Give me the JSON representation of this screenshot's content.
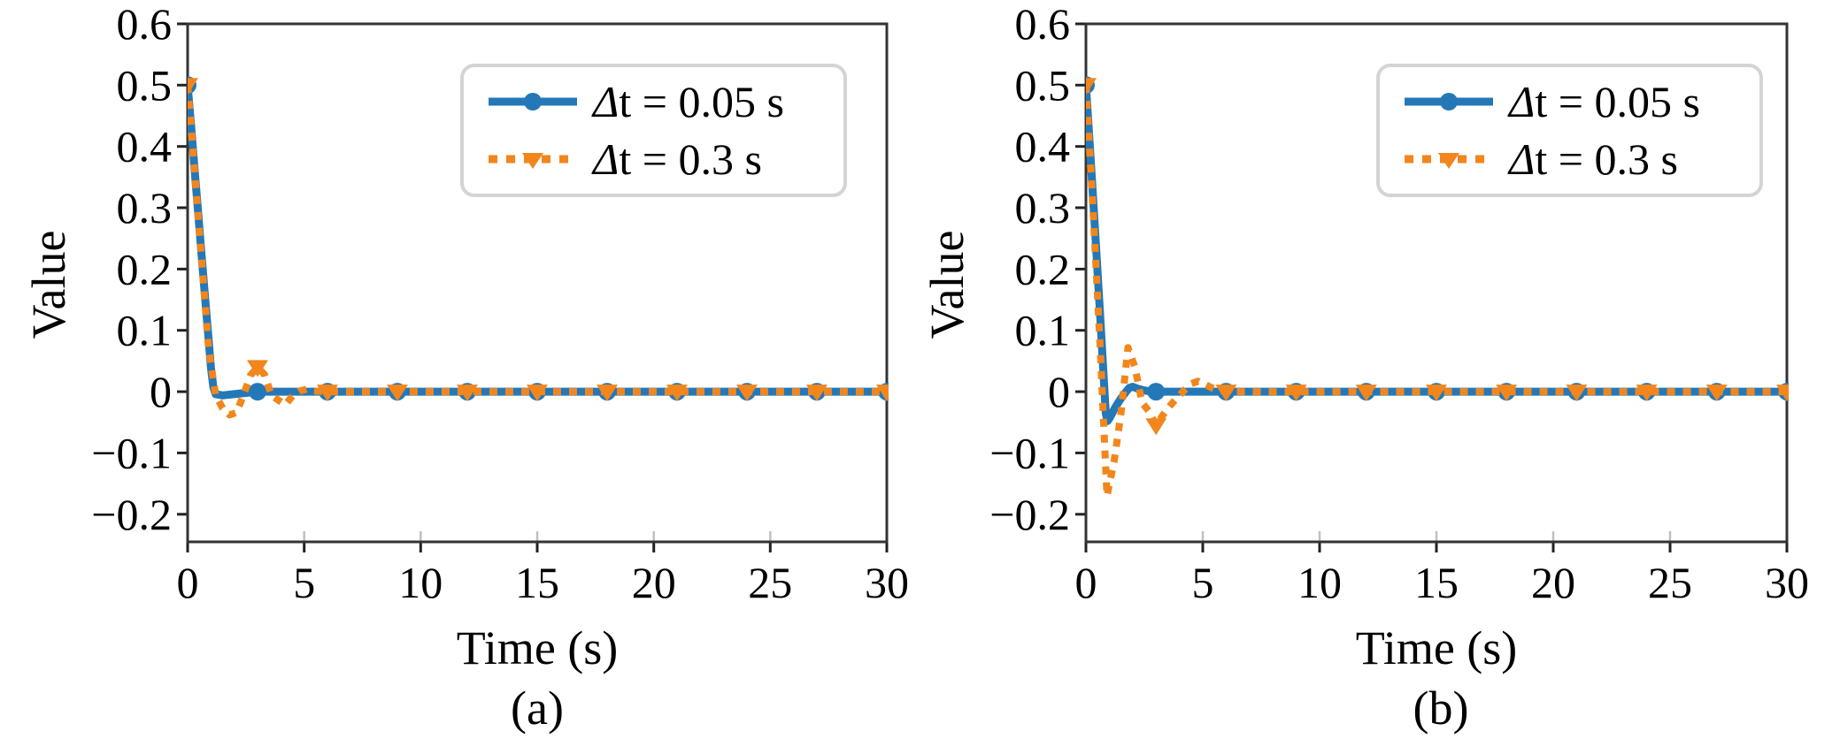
{
  "figure": {
    "background": "#ffffff"
  },
  "colors": {
    "series_dt005": "#2478b7",
    "series_dt03": "#f2861d",
    "spine": "#333333",
    "tick": "#222222",
    "tick_inner": "#c0c0c0",
    "text": "#000000",
    "legend_border": "#d4d4d4",
    "legend_bg": "#ffffff"
  },
  "chart_data": [
    {
      "type": "line",
      "caption": "(a)",
      "xlabel": "Time (s)",
      "ylabel": "Value",
      "xlim": [
        0,
        30
      ],
      "ylim": [
        -0.245,
        0.6
      ],
      "grid": false,
      "legend_position": "upper right",
      "xticks": [
        {
          "v": 0,
          "label": "0"
        },
        {
          "v": 5,
          "label": "5"
        },
        {
          "v": 10,
          "label": "10"
        },
        {
          "v": 15,
          "label": "15"
        },
        {
          "v": 20,
          "label": "20"
        },
        {
          "v": 25,
          "label": "25"
        },
        {
          "v": 30,
          "label": "30"
        }
      ],
      "yticks": [
        {
          "v": 0.6,
          "label": "0.6"
        },
        {
          "v": 0.5,
          "label": "0.5"
        },
        {
          "v": 0.4,
          "label": "0.4"
        },
        {
          "v": 0.3,
          "label": "0.3"
        },
        {
          "v": 0.2,
          "label": "0.2"
        },
        {
          "v": 0.1,
          "label": "0.1"
        },
        {
          "v": 0,
          "label": "0"
        },
        {
          "v": -0.1,
          "label": "−0.1"
        },
        {
          "v": -0.2,
          "label": "−0.2"
        }
      ],
      "legend": {
        "entries": [
          {
            "delta": "Δ",
            "rest": "t = 0.05 s"
          },
          {
            "delta": "Δ",
            "rest": "t = 0.3 s"
          }
        ]
      },
      "series": [
        {
          "name": "Δt = 0.05 s",
          "style": "solid",
          "marker": "circle",
          "line": [
            [
              0,
              0.5
            ],
            [
              0.15,
              0.432
            ],
            [
              0.3,
              0.362
            ],
            [
              0.45,
              0.292
            ],
            [
              0.6,
              0.222
            ],
            [
              0.75,
              0.152
            ],
            [
              0.9,
              0.085
            ],
            [
              1,
              0.04
            ],
            [
              1.1,
              0.008
            ],
            [
              1.2,
              -0.004
            ],
            [
              1.5,
              -0.006
            ],
            [
              2,
              -0.004
            ],
            [
              2.5,
              -0.002
            ],
            [
              3,
              0
            ],
            [
              30,
              0
            ]
          ],
          "marker_points": [
            [
              0,
              0.5
            ],
            [
              3,
              0
            ],
            [
              6,
              0
            ],
            [
              9,
              0
            ],
            [
              12,
              0
            ],
            [
              15,
              0
            ],
            [
              18,
              0
            ],
            [
              21,
              0
            ],
            [
              24,
              0
            ],
            [
              27,
              0
            ],
            [
              30,
              0
            ]
          ]
        },
        {
          "name": "Δt = 0.3 s",
          "style": "dotted",
          "marker": "triangle-down",
          "line": [
            [
              0,
              0.5
            ],
            [
              0.3,
              0.36
            ],
            [
              0.6,
              0.215
            ],
            [
              0.9,
              0.07
            ],
            [
              1.2,
              -0.005
            ],
            [
              1.5,
              -0.027
            ],
            [
              1.8,
              -0.038
            ],
            [
              2.1,
              -0.034
            ],
            [
              2.4,
              -0.005
            ],
            [
              2.7,
              0.027
            ],
            [
              3,
              0.04
            ],
            [
              3.3,
              0.028
            ],
            [
              3.6,
              -0.006
            ],
            [
              3.9,
              -0.014
            ],
            [
              4.2,
              -0.021
            ],
            [
              4.5,
              -0.007
            ],
            [
              4.8,
              0.001
            ],
            [
              5.1,
              0.004
            ],
            [
              5.4,
              0.001
            ],
            [
              6,
              0
            ],
            [
              30,
              0
            ]
          ],
          "marker_points": [
            [
              0,
              0.5
            ],
            [
              3,
              0.04
            ],
            [
              6,
              0
            ],
            [
              9,
              0
            ],
            [
              12,
              0
            ],
            [
              15,
              0
            ],
            [
              18,
              0
            ],
            [
              21,
              0
            ],
            [
              24,
              0
            ],
            [
              27,
              0
            ],
            [
              30,
              0
            ]
          ]
        }
      ]
    },
    {
      "type": "line",
      "caption": "(b)",
      "xlabel": "Time (s)",
      "ylabel": "Value",
      "xlim": [
        0,
        30
      ],
      "ylim": [
        -0.245,
        0.6
      ],
      "grid": false,
      "legend_position": "upper right",
      "xticks": [
        {
          "v": 0,
          "label": "0"
        },
        {
          "v": 5,
          "label": "5"
        },
        {
          "v": 10,
          "label": "10"
        },
        {
          "v": 15,
          "label": "15"
        },
        {
          "v": 20,
          "label": "20"
        },
        {
          "v": 25,
          "label": "25"
        },
        {
          "v": 30,
          "label": "30"
        }
      ],
      "yticks": [
        {
          "v": 0.6,
          "label": "0.6"
        },
        {
          "v": 0.5,
          "label": "0.5"
        },
        {
          "v": 0.4,
          "label": "0.4"
        },
        {
          "v": 0.3,
          "label": "0.3"
        },
        {
          "v": 0.2,
          "label": "0.2"
        },
        {
          "v": 0.1,
          "label": "0.1"
        },
        {
          "v": 0,
          "label": "0"
        },
        {
          "v": -0.1,
          "label": "−0.1"
        },
        {
          "v": -0.2,
          "label": "−0.2"
        }
      ],
      "legend": {
        "entries": [
          {
            "delta": "Δ",
            "rest": "t = 0.05 s"
          },
          {
            "delta": "Δ",
            "rest": "t = 0.3 s"
          }
        ]
      },
      "series": [
        {
          "name": "Δt = 0.05 s",
          "style": "solid",
          "marker": "circle",
          "line": [
            [
              0,
              0.5
            ],
            [
              0.15,
              0.41
            ],
            [
              0.3,
              0.32
            ],
            [
              0.45,
              0.225
            ],
            [
              0.6,
              0.13
            ],
            [
              0.75,
              0.03
            ],
            [
              0.85,
              -0.035
            ],
            [
              0.92,
              -0.048
            ],
            [
              1,
              -0.044
            ],
            [
              1.15,
              -0.033
            ],
            [
              1.3,
              -0.023
            ],
            [
              1.5,
              -0.011
            ],
            [
              1.7,
              -0.001
            ],
            [
              1.85,
              0.006
            ],
            [
              2,
              0.008
            ],
            [
              2.2,
              0.005
            ],
            [
              2.5,
              0.002
            ],
            [
              2.8,
              0
            ],
            [
              30,
              0
            ]
          ],
          "marker_points": [
            [
              0,
              0.5
            ],
            [
              3,
              0
            ],
            [
              6,
              0
            ],
            [
              9,
              0
            ],
            [
              12,
              0
            ],
            [
              15,
              0
            ],
            [
              18,
              0
            ],
            [
              21,
              0
            ],
            [
              24,
              0
            ],
            [
              27,
              0
            ],
            [
              30,
              0
            ]
          ]
        },
        {
          "name": "Δt = 0.3 s",
          "style": "dotted",
          "marker": "triangle-down",
          "line": [
            [
              0,
              0.5
            ],
            [
              0.3,
              0.3
            ],
            [
              0.6,
              0.08
            ],
            [
              0.9,
              -0.17
            ],
            [
              1.2,
              -0.115
            ],
            [
              1.5,
              -0.035
            ],
            [
              1.8,
              0.072
            ],
            [
              2.1,
              0.04
            ],
            [
              2.4,
              -0.018
            ],
            [
              2.7,
              -0.032
            ],
            [
              3,
              -0.055
            ],
            [
              3.3,
              -0.038
            ],
            [
              3.6,
              -0.023
            ],
            [
              3.9,
              -0.01
            ],
            [
              4.2,
              0.002
            ],
            [
              4.5,
              0.013
            ],
            [
              4.8,
              0.017
            ],
            [
              5.1,
              0.012
            ],
            [
              5.4,
              0.006
            ],
            [
              5.7,
              0.002
            ],
            [
              6,
              0
            ],
            [
              30,
              0
            ]
          ],
          "marker_points": [
            [
              0,
              0.5
            ],
            [
              3,
              -0.055
            ],
            [
              6,
              0
            ],
            [
              9,
              0
            ],
            [
              12,
              0
            ],
            [
              15,
              0
            ],
            [
              18,
              0
            ],
            [
              21,
              0
            ],
            [
              24,
              0
            ],
            [
              27,
              0
            ],
            [
              30,
              0
            ]
          ]
        }
      ]
    }
  ]
}
